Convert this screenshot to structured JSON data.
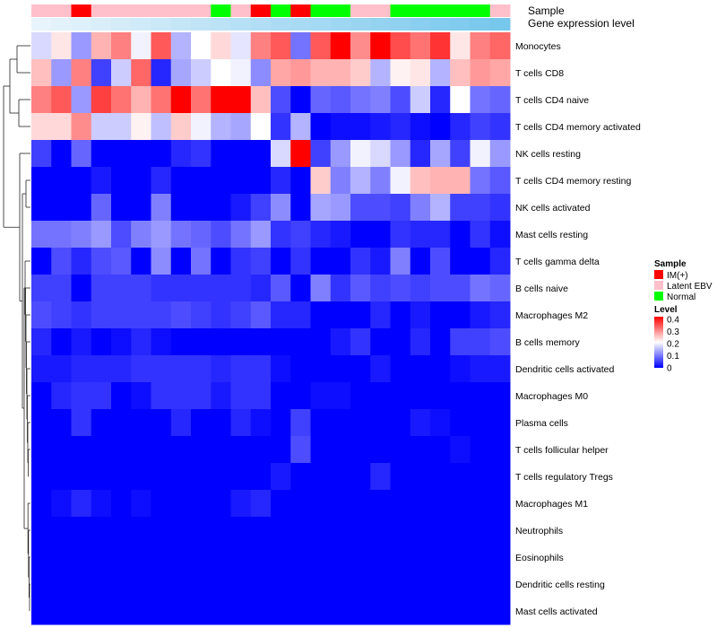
{
  "chart_data": {
    "type": "heatmap",
    "annotation_tracks": [
      {
        "name": "Sample",
        "categories": [
          "Latent EBV",
          "Latent EBV",
          "IM(+)",
          "Latent EBV",
          "Latent EBV",
          "Latent EBV",
          "Latent EBV",
          "Latent EBV",
          "Latent EBV",
          "Normal",
          "Latent EBV",
          "IM(+)",
          "Normal",
          "IM(+)",
          "Normal",
          "Normal",
          "Latent EBV",
          "Latent EBV",
          "Normal",
          "Normal",
          "Normal",
          "Normal",
          "Normal",
          "Latent EBV"
        ]
      },
      {
        "name": "Gene expression level",
        "values": [
          0.0,
          0.04,
          0.08,
          0.12,
          0.16,
          0.2,
          0.24,
          0.28,
          0.32,
          0.36,
          0.4,
          0.44,
          0.48,
          0.52,
          0.56,
          0.6,
          0.64,
          0.68,
          0.72,
          0.76,
          0.8,
          0.84,
          0.88,
          0.92
        ]
      }
    ],
    "rows": [
      "Monocytes",
      "T cells CD8",
      "T cells CD4 naive",
      "T cells CD4 memory activated",
      "NK cells resting",
      "T cells CD4 memory resting",
      "NK cells activated",
      "Mast cells resting",
      "T cells gamma delta",
      "B cells naive",
      "Macrophages M2",
      "B cells memory",
      "Dendritic cells activated",
      "Macrophages M0",
      "Plasma cells",
      "T cells follicular helper",
      "T cells regulatory  Tregs",
      "Macrophages M1",
      "Neutrophils",
      "Eosinophils",
      "Dendritic cells resting",
      "Mast cells activated"
    ],
    "values": [
      [
        0.17,
        0.22,
        0.12,
        0.26,
        0.3,
        0.19,
        0.33,
        0.14,
        0.2,
        0.23,
        0.18,
        0.3,
        0.33,
        0.09,
        0.33,
        0.4,
        0.29,
        0.4,
        0.34,
        0.31,
        0.36,
        0.22,
        0.3,
        0.32
      ],
      [
        0.25,
        0.12,
        0.3,
        0.05,
        0.16,
        0.32,
        0.03,
        0.13,
        0.16,
        0.2,
        0.19,
        0.11,
        0.27,
        0.28,
        0.26,
        0.26,
        0.24,
        0.14,
        0.21,
        0.22,
        0.14,
        0.25,
        0.28,
        0.27
      ],
      [
        0.3,
        0.33,
        0.12,
        0.35,
        0.31,
        0.26,
        0.31,
        0.4,
        0.31,
        0.4,
        0.4,
        0.25,
        0.06,
        0.0,
        0.08,
        0.07,
        0.09,
        0.1,
        0.06,
        0.16,
        0.03,
        0.2,
        0.09,
        0.08
      ],
      [
        0.23,
        0.23,
        0.29,
        0.16,
        0.16,
        0.21,
        0.15,
        0.24,
        0.19,
        0.14,
        0.13,
        0.2,
        0.04,
        0.14,
        0.0,
        0.01,
        0.01,
        0.02,
        0.03,
        0.01,
        0.0,
        0.03,
        0.05,
        0.04
      ],
      [
        0.05,
        0.0,
        0.08,
        0.0,
        0.0,
        0.0,
        0.0,
        0.03,
        0.04,
        0.0,
        0.0,
        0.0,
        0.17,
        0.4,
        0.05,
        0.12,
        0.19,
        0.17,
        0.12,
        0.03,
        0.13,
        0.05,
        0.19,
        0.12
      ],
      [
        0.0,
        0.0,
        0.0,
        0.02,
        0.0,
        0.0,
        0.03,
        0.0,
        0.0,
        0.0,
        0.0,
        0.0,
        0.03,
        0.0,
        0.24,
        0.1,
        0.14,
        0.1,
        0.19,
        0.25,
        0.26,
        0.26,
        0.09,
        0.07
      ],
      [
        0.0,
        0.0,
        0.0,
        0.08,
        0.0,
        0.0,
        0.1,
        0.0,
        0.0,
        0.0,
        0.02,
        0.05,
        0.11,
        0.0,
        0.13,
        0.12,
        0.06,
        0.06,
        0.05,
        0.1,
        0.14,
        0.05,
        0.05,
        0.04
      ],
      [
        0.09,
        0.09,
        0.1,
        0.12,
        0.06,
        0.1,
        0.12,
        0.09,
        0.08,
        0.06,
        0.09,
        0.12,
        0.04,
        0.05,
        0.03,
        0.02,
        0.0,
        0.0,
        0.04,
        0.03,
        0.03,
        0.0,
        0.04,
        0.01
      ],
      [
        0.0,
        0.06,
        0.03,
        0.06,
        0.07,
        0.0,
        0.11,
        0.0,
        0.09,
        0.0,
        0.04,
        0.05,
        0.0,
        0.04,
        0.0,
        0.0,
        0.04,
        0.02,
        0.1,
        0.0,
        0.06,
        0.0,
        0.0,
        0.03
      ],
      [
        0.05,
        0.05,
        0.0,
        0.05,
        0.05,
        0.05,
        0.04,
        0.04,
        0.04,
        0.04,
        0.04,
        0.03,
        0.07,
        0.0,
        0.1,
        0.04,
        0.07,
        0.05,
        0.06,
        0.05,
        0.06,
        0.06,
        0.09,
        0.08
      ],
      [
        0.06,
        0.05,
        0.04,
        0.05,
        0.05,
        0.05,
        0.05,
        0.06,
        0.05,
        0.04,
        0.05,
        0.07,
        0.03,
        0.03,
        0.0,
        0.0,
        0.0,
        0.03,
        0.0,
        0.02,
        0.0,
        0.0,
        0.02,
        0.03
      ],
      [
        0.03,
        0.0,
        0.02,
        0.0,
        0.01,
        0.03,
        0.01,
        0.0,
        0.0,
        0.0,
        0.0,
        0.0,
        0.0,
        0.0,
        0.0,
        0.02,
        0.04,
        0.0,
        0.0,
        0.03,
        0.0,
        0.05,
        0.05,
        0.06
      ],
      [
        0.02,
        0.02,
        0.03,
        0.03,
        0.03,
        0.04,
        0.04,
        0.04,
        0.04,
        0.03,
        0.04,
        0.04,
        0.01,
        0.0,
        0.0,
        0.0,
        0.0,
        0.02,
        0.0,
        0.0,
        0.0,
        0.01,
        0.02,
        0.02
      ],
      [
        0.0,
        0.03,
        0.04,
        0.04,
        0.0,
        0.01,
        0.04,
        0.04,
        0.04,
        0.02,
        0.04,
        0.04,
        0.0,
        0.0,
        0.01,
        0.01,
        0.0,
        0.0,
        0.0,
        0.0,
        0.0,
        0.0,
        0.0,
        0.0
      ],
      [
        0.0,
        0.0,
        0.04,
        0.0,
        0.0,
        0.0,
        0.0,
        0.03,
        0.0,
        0.0,
        0.03,
        0.01,
        0.0,
        0.05,
        0.0,
        0.0,
        0.0,
        0.0,
        0.0,
        0.02,
        0.01,
        0.0,
        0.0,
        0.0
      ],
      [
        0.0,
        0.0,
        0.0,
        0.0,
        0.0,
        0.0,
        0.0,
        0.0,
        0.0,
        0.0,
        0.0,
        0.0,
        0.0,
        0.06,
        0.0,
        0.0,
        0.0,
        0.0,
        0.0,
        0.0,
        0.0,
        0.01,
        0.0,
        0.0
      ],
      [
        0.0,
        0.0,
        0.0,
        0.0,
        0.0,
        0.0,
        0.0,
        0.0,
        0.0,
        0.0,
        0.0,
        0.0,
        0.02,
        0.0,
        0.0,
        0.0,
        0.0,
        0.03,
        0.0,
        0.0,
        0.0,
        0.0,
        0.0,
        0.0
      ],
      [
        0.0,
        0.01,
        0.03,
        0.01,
        0.0,
        0.01,
        0.0,
        0.0,
        0.0,
        0.0,
        0.02,
        0.03,
        0.0,
        0.0,
        0.0,
        0.0,
        0.0,
        0.0,
        0.0,
        0.0,
        0.0,
        0.0,
        0.0,
        0.0
      ],
      [
        0.0,
        0.0,
        0.0,
        0.0,
        0.0,
        0.0,
        0.0,
        0.0,
        0.0,
        0.0,
        0.0,
        0.0,
        0.0,
        0.0,
        0.0,
        0.0,
        0.0,
        0.0,
        0.0,
        0.0,
        0.0,
        0.0,
        0.0,
        0.0
      ],
      [
        0.0,
        0.0,
        0.0,
        0.0,
        0.0,
        0.0,
        0.0,
        0.0,
        0.0,
        0.0,
        0.0,
        0.0,
        0.0,
        0.0,
        0.0,
        0.0,
        0.0,
        0.0,
        0.0,
        0.0,
        0.0,
        0.0,
        0.0,
        0.0
      ],
      [
        0.0,
        0.0,
        0.0,
        0.0,
        0.0,
        0.0,
        0.0,
        0.0,
        0.0,
        0.0,
        0.0,
        0.0,
        0.0,
        0.0,
        0.0,
        0.0,
        0.0,
        0.0,
        0.0,
        0.0,
        0.0,
        0.0,
        0.0,
        0.0
      ],
      [
        0.0,
        0.0,
        0.0,
        0.0,
        0.0,
        0.0,
        0.0,
        0.0,
        0.0,
        0.0,
        0.0,
        0.0,
        0.0,
        0.0,
        0.0,
        0.0,
        0.0,
        0.0,
        0.0,
        0.0,
        0.0,
        0.0,
        0.0,
        0.0
      ]
    ],
    "color_scale": {
      "min": 0,
      "max": 0.4,
      "low_color": "#0000ff",
      "mid_color": "#ffffff",
      "high_color": "#ff0000",
      "mid_value": 0.2
    },
    "legend": {
      "sample_title": "Sample",
      "sample_entries": [
        {
          "label": "IM(+)",
          "color": "#ff0000"
        },
        {
          "label": "Latent EBV",
          "color": "#ffc0cb"
        },
        {
          "label": "Normal",
          "color": "#00ff00"
        }
      ],
      "level_title": "Level",
      "level_ticks": [
        "0.4",
        "0.3",
        "0.2",
        "0.1",
        "0"
      ],
      "placement": "right"
    },
    "dendrogram": "rows"
  }
}
